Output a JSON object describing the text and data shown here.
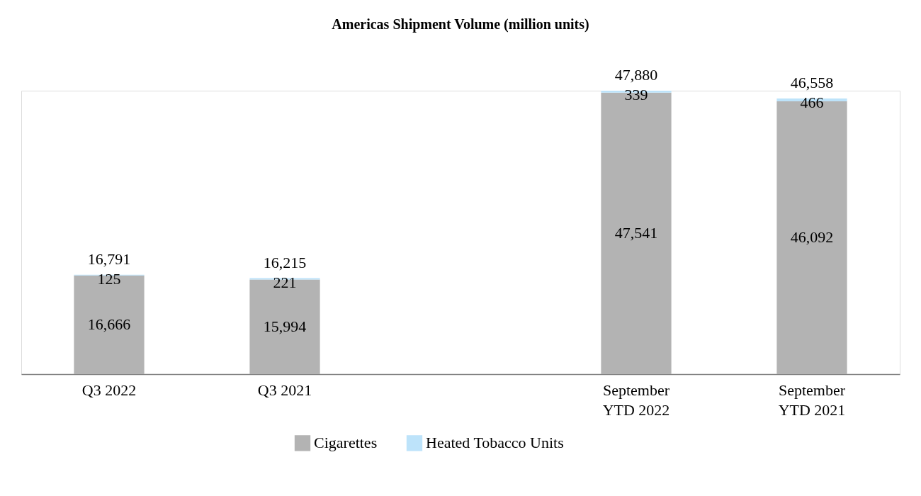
{
  "chart_data": {
    "type": "bar",
    "title": "Americas Shipment Volume (million units)",
    "stacked": true,
    "legend": "bottom",
    "categories": [
      "Q3 2022",
      "Q3 2021",
      null,
      "September YTD 2022",
      "September YTD 2021"
    ],
    "series": [
      {
        "name": "Cigarettes",
        "color": "#b3b3b3",
        "values": [
          16666,
          15994,
          null,
          47541,
          46092
        ],
        "value_labels": [
          "16,666",
          "15,994",
          null,
          "47,541",
          "46,092"
        ]
      },
      {
        "name": "Heated Tobacco Units",
        "color": "#bde3fa",
        "values": [
          125,
          221,
          null,
          339,
          466
        ],
        "value_labels": [
          "125",
          "221",
          null,
          "339",
          "466"
        ]
      }
    ],
    "totals": [
      "16,791",
      "16,215",
      null,
      "47,880",
      "46,558"
    ]
  }
}
